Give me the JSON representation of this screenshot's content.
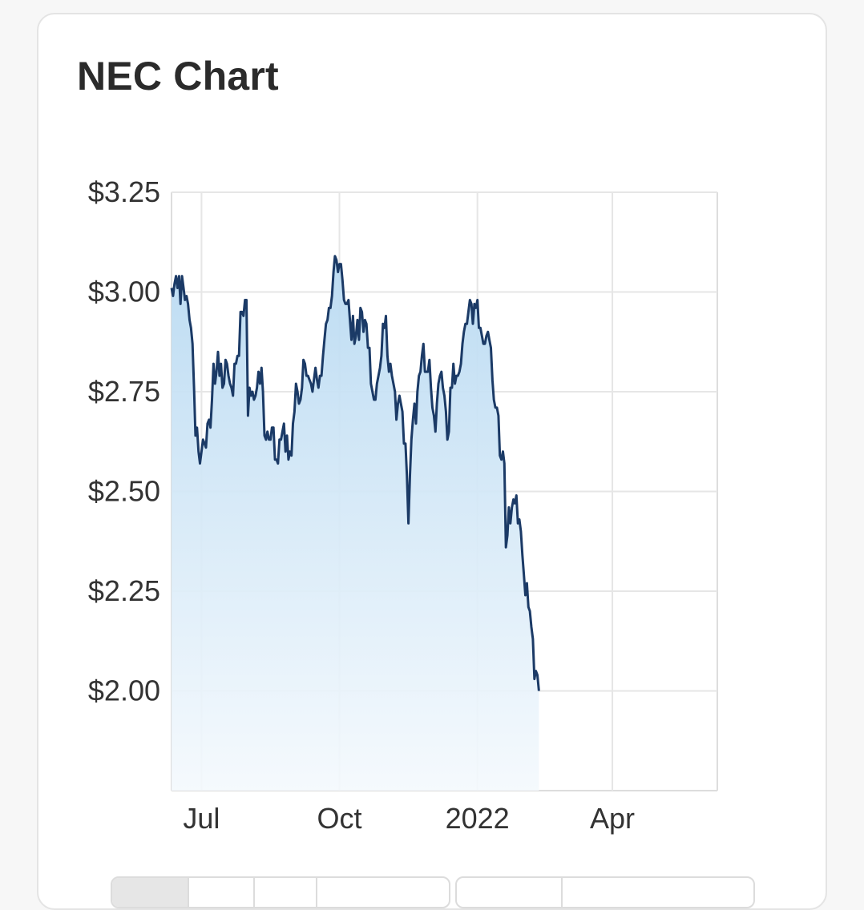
{
  "card": {
    "title": "NEC Chart"
  },
  "chart_data": {
    "type": "area",
    "title": "NEC Chart",
    "xlabel": "",
    "ylabel": "",
    "x_ticks": [
      {
        "label": "Jul",
        "day": 11
      },
      {
        "label": "Oct",
        "day": 103
      },
      {
        "label": "2022",
        "day": 195
      },
      {
        "label": "Apr",
        "day": 285
      }
    ],
    "y_ticks": [
      "$3.25",
      "$3.00",
      "$2.75",
      "$2.50",
      "$2.25",
      "$2.00"
    ],
    "y_tick_values": [
      3.25,
      3.0,
      2.75,
      2.5,
      2.25,
      2.0
    ],
    "ylim": [
      1.75,
      3.25
    ],
    "x_start_day": -9,
    "x_end_day": 355,
    "grid": true,
    "colors": {
      "line": "#1b3a66",
      "fill_top": "#b9daf2",
      "fill_bottom": "#f4f9fd",
      "grid": "#e6e6e6"
    },
    "series": [
      {
        "values": [
          [
            -9,
            3.01
          ],
          [
            -8,
            2.99
          ],
          [
            -7,
            3.02
          ],
          [
            -6,
            3.04
          ],
          [
            -5,
            3.01
          ],
          [
            -4,
            3.04
          ],
          [
            -3,
            2.97
          ],
          [
            -2,
            3.04
          ],
          [
            -1,
            3.01
          ],
          [
            0,
            2.98
          ],
          [
            1,
            2.99
          ],
          [
            2,
            2.97
          ],
          [
            3,
            2.93
          ],
          [
            4,
            2.91
          ],
          [
            5,
            2.87
          ],
          [
            6,
            2.76
          ],
          [
            7,
            2.64
          ],
          [
            8,
            2.66
          ],
          [
            9,
            2.6
          ],
          [
            10,
            2.57
          ],
          [
            11,
            2.6
          ],
          [
            12,
            2.63
          ],
          [
            13,
            2.62
          ],
          [
            14,
            2.61
          ],
          [
            15,
            2.67
          ],
          [
            16,
            2.68
          ],
          [
            17,
            2.66
          ],
          [
            18,
            2.73
          ],
          [
            19,
            2.82
          ],
          [
            20,
            2.77
          ],
          [
            21,
            2.8
          ],
          [
            22,
            2.85
          ],
          [
            23,
            2.79
          ],
          [
            24,
            2.82
          ],
          [
            25,
            2.76
          ],
          [
            26,
            2.77
          ],
          [
            27,
            2.83
          ],
          [
            28,
            2.82
          ],
          [
            29,
            2.79
          ],
          [
            30,
            2.77
          ],
          [
            31,
            2.76
          ],
          [
            32,
            2.74
          ],
          [
            33,
            2.82
          ],
          [
            34,
            2.82
          ],
          [
            35,
            2.84
          ],
          [
            36,
            2.84
          ],
          [
            37,
            2.95
          ],
          [
            38,
            2.95
          ],
          [
            39,
            2.94
          ],
          [
            40,
            2.98
          ],
          [
            41,
            2.98
          ],
          [
            42,
            2.69
          ],
          [
            43,
            2.76
          ],
          [
            44,
            2.74
          ],
          [
            45,
            2.75
          ],
          [
            46,
            2.73
          ],
          [
            47,
            2.74
          ],
          [
            48,
            2.76
          ],
          [
            49,
            2.8
          ],
          [
            50,
            2.77
          ],
          [
            51,
            2.81
          ],
          [
            52,
            2.75
          ],
          [
            53,
            2.64
          ],
          [
            54,
            2.63
          ],
          [
            55,
            2.65
          ],
          [
            56,
            2.63
          ],
          [
            57,
            2.63
          ],
          [
            58,
            2.66
          ],
          [
            59,
            2.66
          ],
          [
            60,
            2.58
          ],
          [
            61,
            2.58
          ],
          [
            62,
            2.57
          ],
          [
            63,
            2.63
          ],
          [
            64,
            2.63
          ],
          [
            65,
            2.65
          ],
          [
            66,
            2.67
          ],
          [
            67,
            2.6
          ],
          [
            68,
            2.64
          ],
          [
            69,
            2.58
          ],
          [
            70,
            2.6
          ],
          [
            71,
            2.59
          ],
          [
            72,
            2.67
          ],
          [
            73,
            2.7
          ],
          [
            74,
            2.77
          ],
          [
            75,
            2.75
          ],
          [
            76,
            2.72
          ],
          [
            77,
            2.73
          ],
          [
            78,
            2.76
          ],
          [
            79,
            2.83
          ],
          [
            80,
            2.82
          ],
          [
            81,
            2.79
          ],
          [
            82,
            2.79
          ],
          [
            83,
            2.78
          ],
          [
            84,
            2.77
          ],
          [
            85,
            2.75
          ],
          [
            86,
            2.78
          ],
          [
            87,
            2.81
          ],
          [
            88,
            2.78
          ],
          [
            89,
            2.76
          ],
          [
            90,
            2.79
          ],
          [
            91,
            2.79
          ],
          [
            92,
            2.84
          ],
          [
            93,
            2.88
          ],
          [
            94,
            2.92
          ],
          [
            95,
            2.93
          ],
          [
            96,
            2.96
          ],
          [
            97,
            2.96
          ],
          [
            98,
            2.99
          ],
          [
            99,
            3.05
          ],
          [
            100,
            3.09
          ],
          [
            101,
            3.08
          ],
          [
            102,
            3.05
          ],
          [
            103,
            3.07
          ],
          [
            104,
            3.07
          ],
          [
            105,
            3.03
          ],
          [
            106,
            2.98
          ],
          [
            107,
            2.97
          ],
          [
            108,
            2.97
          ],
          [
            109,
            2.98
          ],
          [
            110,
            2.93
          ],
          [
            111,
            2.88
          ],
          [
            112,
            2.94
          ],
          [
            113,
            2.87
          ],
          [
            114,
            2.89
          ],
          [
            115,
            2.93
          ],
          [
            116,
            2.88
          ],
          [
            117,
            2.96
          ],
          [
            118,
            2.95
          ],
          [
            119,
            2.9
          ],
          [
            120,
            2.93
          ],
          [
            121,
            2.92
          ],
          [
            122,
            2.86
          ],
          [
            123,
            2.86
          ],
          [
            124,
            2.77
          ],
          [
            125,
            2.75
          ],
          [
            126,
            2.73
          ],
          [
            127,
            2.73
          ],
          [
            128,
            2.77
          ],
          [
            129,
            2.79
          ],
          [
            130,
            2.81
          ],
          [
            131,
            2.84
          ],
          [
            132,
            2.92
          ],
          [
            133,
            2.91
          ],
          [
            134,
            2.94
          ],
          [
            135,
            2.84
          ],
          [
            136,
            2.8
          ],
          [
            137,
            2.82
          ],
          [
            138,
            2.79
          ],
          [
            139,
            2.77
          ],
          [
            140,
            2.75
          ],
          [
            141,
            2.68
          ],
          [
            142,
            2.72
          ],
          [
            143,
            2.74
          ],
          [
            144,
            2.72
          ],
          [
            145,
            2.7
          ],
          [
            146,
            2.62
          ],
          [
            147,
            2.62
          ],
          [
            148,
            2.54
          ],
          [
            149,
            2.42
          ],
          [
            150,
            2.54
          ],
          [
            151,
            2.63
          ],
          [
            152,
            2.68
          ],
          [
            153,
            2.72
          ],
          [
            154,
            2.67
          ],
          [
            155,
            2.75
          ],
          [
            156,
            2.79
          ],
          [
            157,
            2.8
          ],
          [
            158,
            2.84
          ],
          [
            159,
            2.87
          ],
          [
            160,
            2.8
          ],
          [
            161,
            2.8
          ],
          [
            162,
            2.8
          ],
          [
            163,
            2.83
          ],
          [
            164,
            2.76
          ],
          [
            165,
            2.71
          ],
          [
            166,
            2.69
          ],
          [
            167,
            2.65
          ],
          [
            168,
            2.72
          ],
          [
            169,
            2.77
          ],
          [
            170,
            2.79
          ],
          [
            171,
            2.8
          ],
          [
            172,
            2.76
          ],
          [
            173,
            2.74
          ],
          [
            174,
            2.7
          ],
          [
            175,
            2.63
          ],
          [
            176,
            2.65
          ],
          [
            177,
            2.76
          ],
          [
            178,
            2.76
          ],
          [
            179,
            2.82
          ],
          [
            180,
            2.77
          ],
          [
            181,
            2.79
          ],
          [
            182,
            2.79
          ],
          [
            183,
            2.8
          ],
          [
            184,
            2.82
          ],
          [
            185,
            2.87
          ],
          [
            186,
            2.9
          ],
          [
            187,
            2.92
          ],
          [
            188,
            2.92
          ],
          [
            189,
            2.95
          ],
          [
            190,
            2.98
          ],
          [
            191,
            2.97
          ],
          [
            192,
            2.92
          ],
          [
            193,
            2.97
          ],
          [
            194,
            2.96
          ],
          [
            195,
            2.98
          ],
          [
            196,
            2.91
          ],
          [
            197,
            2.91
          ],
          [
            198,
            2.89
          ],
          [
            199,
            2.87
          ],
          [
            200,
            2.87
          ],
          [
            201,
            2.89
          ],
          [
            202,
            2.9
          ],
          [
            203,
            2.88
          ],
          [
            204,
            2.86
          ],
          [
            205,
            2.78
          ],
          [
            206,
            2.73
          ],
          [
            207,
            2.71
          ],
          [
            208,
            2.71
          ],
          [
            209,
            2.69
          ],
          [
            210,
            2.59
          ],
          [
            211,
            2.58
          ],
          [
            212,
            2.6
          ],
          [
            213,
            2.57
          ],
          [
            214,
            2.36
          ],
          [
            215,
            2.39
          ],
          [
            216,
            2.46
          ],
          [
            217,
            2.42
          ],
          [
            218,
            2.46
          ],
          [
            219,
            2.48
          ],
          [
            220,
            2.47
          ],
          [
            221,
            2.49
          ],
          [
            222,
            2.42
          ],
          [
            223,
            2.43
          ],
          [
            224,
            2.4
          ],
          [
            225,
            2.34
          ],
          [
            226,
            2.29
          ],
          [
            227,
            2.24
          ],
          [
            228,
            2.27
          ],
          [
            229,
            2.21
          ],
          [
            230,
            2.2
          ],
          [
            231,
            2.16
          ],
          [
            232,
            2.13
          ],
          [
            233,
            2.03
          ],
          [
            234,
            2.05
          ],
          [
            235,
            2.04
          ],
          [
            236,
            2.0
          ]
        ]
      }
    ]
  },
  "range_buttons": {
    "group_a_count": 4,
    "group_b_count": 2
  }
}
